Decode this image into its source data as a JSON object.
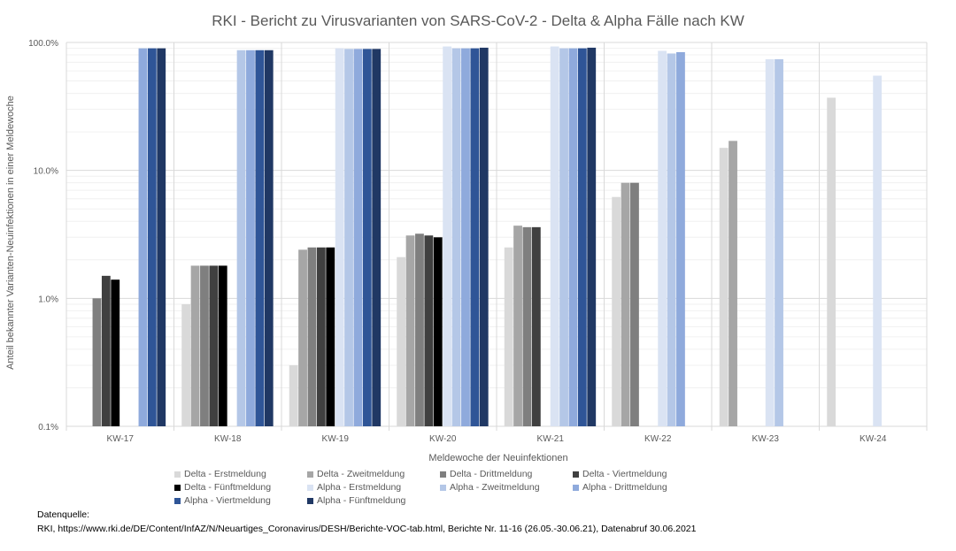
{
  "chart_data": {
    "type": "bar",
    "title": "RKI - Bericht zu Virusvarianten von SARS-CoV-2 - Delta & Alpha Fälle nach KW",
    "xlabel": "Meldewoche der Neuinfektionen",
    "ylabel": "Anteil bekannter Varianten-Neuinfektionen in einer Meldewoche",
    "yscale": "log",
    "ylim": [
      0.1,
      100
    ],
    "y_ticks": [
      "0.1%",
      "1.0%",
      "10.0%",
      "100.0%"
    ],
    "y_tick_values": [
      0.1,
      1,
      10,
      100
    ],
    "grid": true,
    "legend_position": "bottom",
    "categories": [
      "KW-17",
      "KW-18",
      "KW-19",
      "KW-20",
      "KW-21",
      "KW-22",
      "KW-23",
      "KW-24"
    ],
    "series": [
      {
        "name": "Delta - Erstmeldung",
        "color": "#d9d9d9",
        "values": [
          null,
          0.9,
          0.3,
          2.1,
          2.5,
          6.2,
          15,
          37
        ]
      },
      {
        "name": "Delta - Zweitmeldung",
        "color": "#a6a6a6",
        "values": [
          null,
          1.8,
          2.4,
          3.1,
          3.7,
          8.0,
          17,
          null
        ]
      },
      {
        "name": "Delta - Drittmeldung",
        "color": "#7f7f7f",
        "values": [
          1.0,
          1.8,
          2.5,
          3.2,
          3.6,
          8.0,
          null,
          null
        ]
      },
      {
        "name": "Delta - Viertmeldung",
        "color": "#404040",
        "values": [
          1.5,
          1.8,
          2.5,
          3.1,
          3.6,
          null,
          null,
          null
        ]
      },
      {
        "name": "Delta - Fünftmeldung",
        "color": "#000000",
        "values": [
          1.4,
          1.8,
          2.5,
          3.0,
          null,
          null,
          null,
          null
        ]
      },
      {
        "name": "Alpha - Erstmeldung",
        "color": "#dae3f3",
        "values": [
          null,
          null,
          90,
          93,
          93,
          86,
          74,
          55
        ]
      },
      {
        "name": "Alpha - Zweitmeldung",
        "color": "#b4c7e7",
        "values": [
          null,
          87,
          89,
          90,
          90,
          82,
          74,
          null
        ]
      },
      {
        "name": "Alpha - Drittmeldung",
        "color": "#8faadc",
        "values": [
          90,
          87,
          89,
          90,
          90,
          84,
          null,
          null
        ]
      },
      {
        "name": "Alpha - Viertmeldung",
        "color": "#2f5597",
        "values": [
          90,
          87,
          89,
          90,
          90,
          null,
          null,
          null
        ]
      },
      {
        "name": "Alpha - Fünftmeldung",
        "color": "#203864",
        "values": [
          90,
          87,
          89,
          91,
          91,
          null,
          null,
          null
        ]
      }
    ]
  },
  "source": {
    "label": "Datenquelle:",
    "text": "RKI, https://www.rki.de/DE/Content/InfAZ/N/Neuartiges_Coronavirus/DESH/Berichte-VOC-tab.html, Berichte Nr. 11-16 (26.05.-30.06.21), Datenabruf 30.06.2021"
  }
}
